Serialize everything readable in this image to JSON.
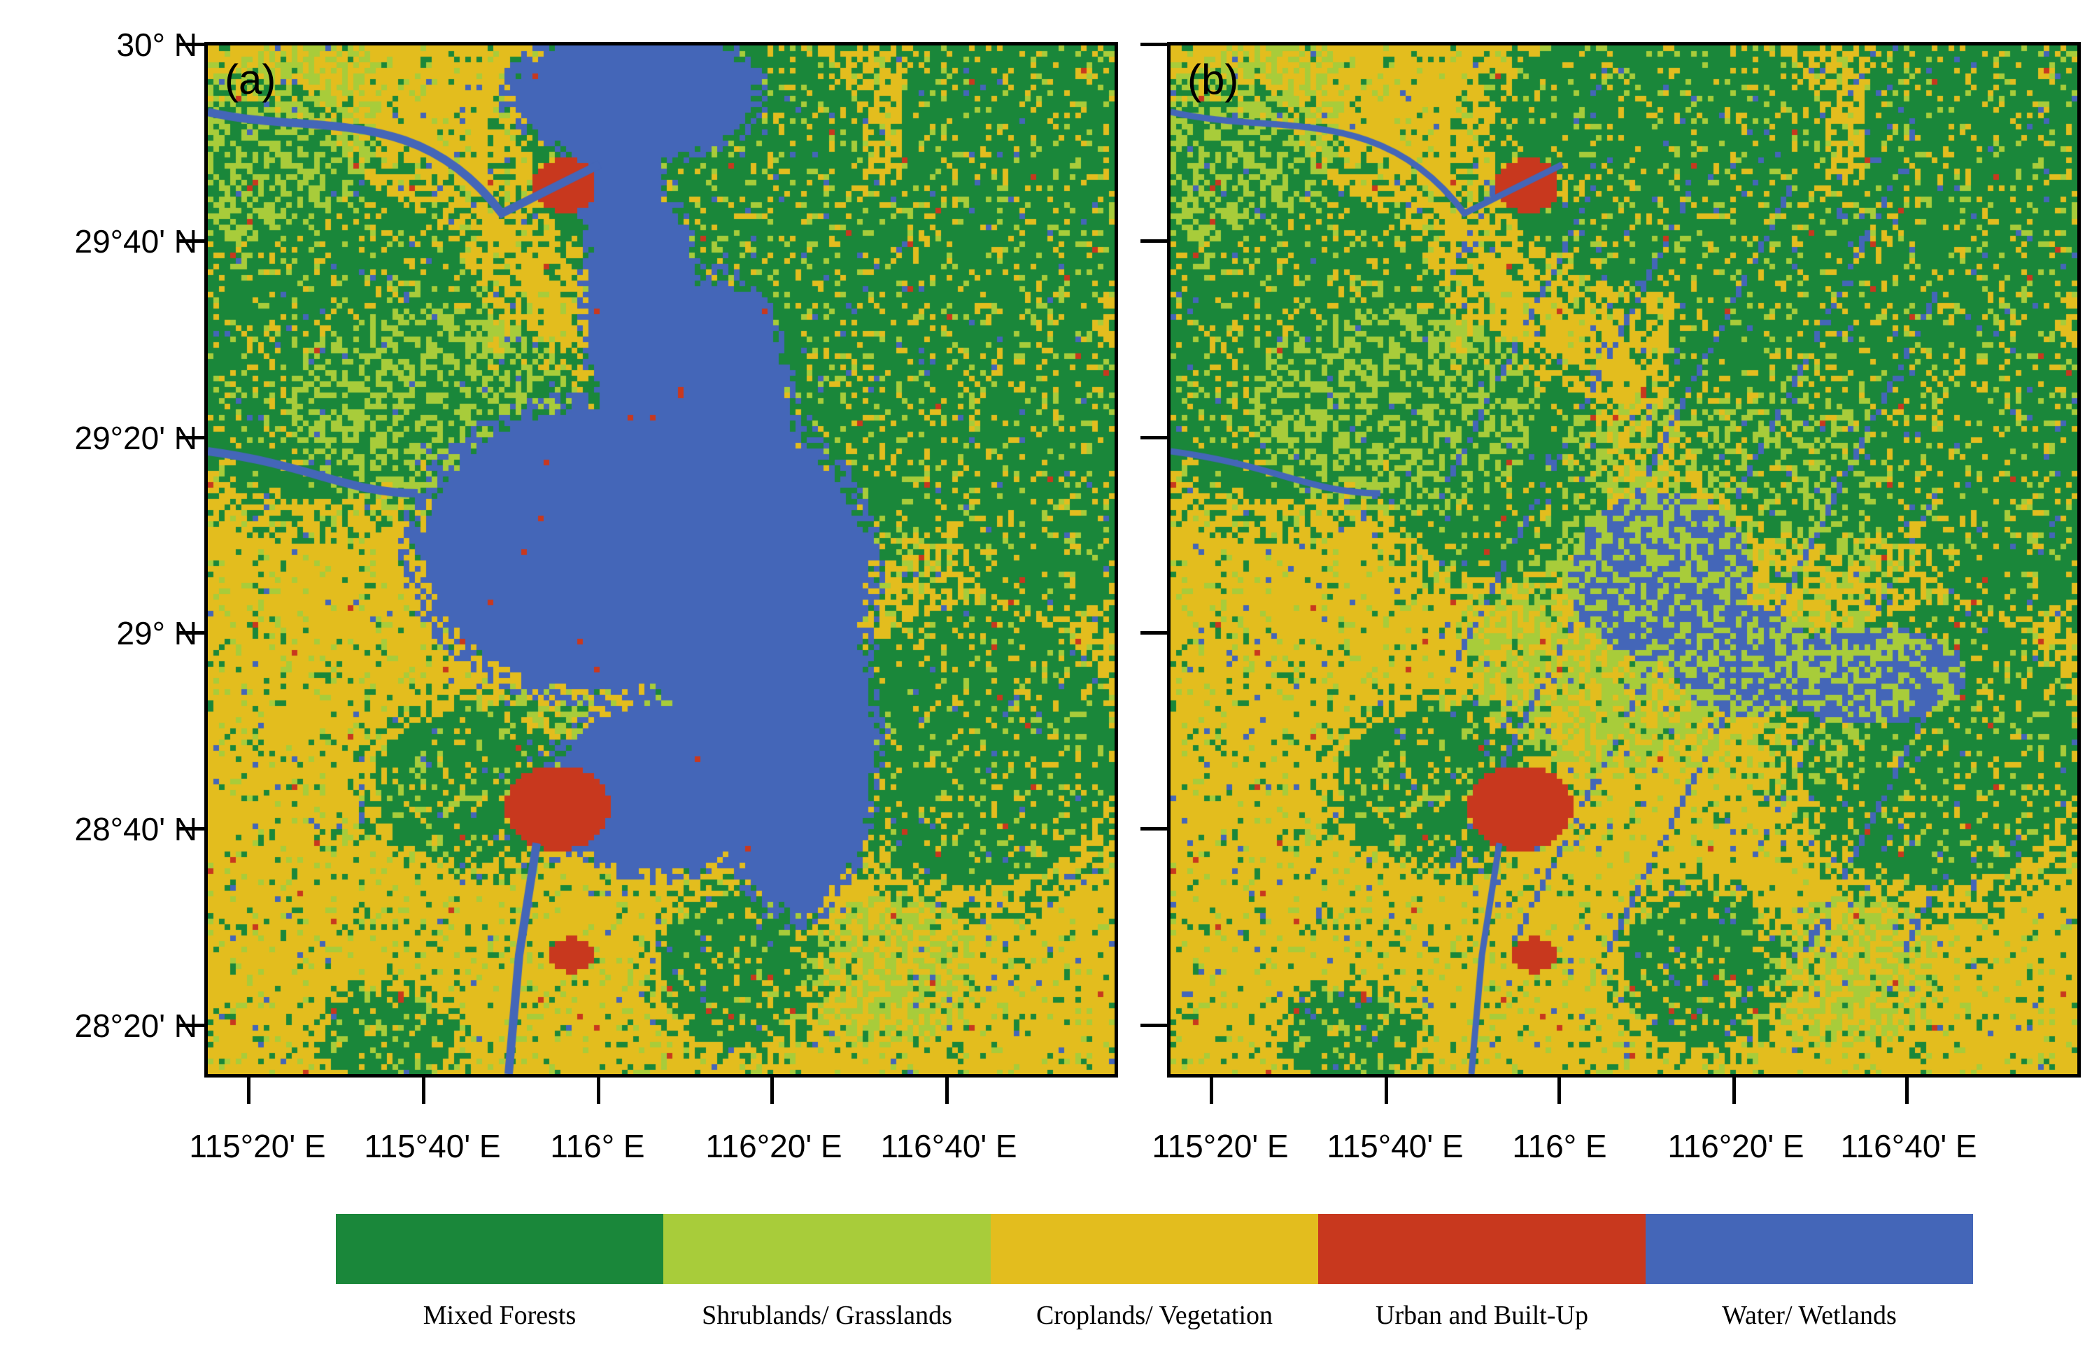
{
  "panels": [
    {
      "label": "(a)",
      "id": "a"
    },
    {
      "label": "(b)",
      "id": "b"
    }
  ],
  "y_axis": {
    "ticks": [
      {
        "value": 30.0,
        "label": "30° N"
      },
      {
        "value": 29.6667,
        "label": "29°40' N"
      },
      {
        "value": 29.3333,
        "label": "29°20' N"
      },
      {
        "value": 29.0,
        "label": "29° N"
      },
      {
        "value": 28.6667,
        "label": "28°40' N"
      },
      {
        "value": 28.3333,
        "label": "28°20' N"
      }
    ]
  },
  "x_axis": {
    "ticks": [
      {
        "value": 115.3333,
        "label": "115°20' E"
      },
      {
        "value": 115.6667,
        "label": "115°40' E"
      },
      {
        "value": 116.0,
        "label": "116° E"
      },
      {
        "value": 116.3333,
        "label": "116°20' E"
      },
      {
        "value": 116.6667,
        "label": "116°40' E"
      }
    ]
  },
  "legend": [
    {
      "label": "Mixed Forests",
      "color": "#1a873a"
    },
    {
      "label": "Shrublands/ Grasslands",
      "color": "#a8cc3a"
    },
    {
      "label": "Croplands/ Vegetation",
      "color": "#e3bd1e"
    },
    {
      "label": "Urban and Built-Up",
      "color": "#c8381e"
    },
    {
      "label": "Water/ Wetlands",
      "color": "#4466b8"
    }
  ]
}
